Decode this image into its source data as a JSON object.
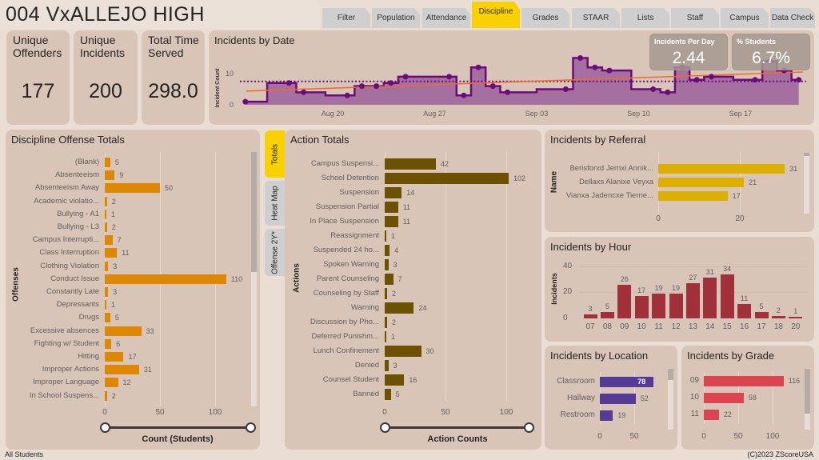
{
  "header": {
    "title": "004 VxALLEJO HIGH"
  },
  "tabs": [
    "Filter",
    "Population",
    "Attendance",
    "Discipline",
    "Grades",
    "STAAR",
    "Lists",
    "Staff",
    "Campus",
    "Data Check"
  ],
  "active_tab": "Discipline",
  "kpis": [
    {
      "label": "Unique Offenders",
      "value": "177"
    },
    {
      "label": "Unique Incidents",
      "value": "200"
    },
    {
      "label": "Total Time Served",
      "value": "298.0"
    }
  ],
  "date_panel": {
    "title": "Incidents by Date",
    "cards": [
      {
        "label": "Incidents Per Day",
        "value": "2.44"
      },
      {
        "label": "% Students",
        "value": "6.7%"
      }
    ]
  },
  "side_tabs": [
    "Totals",
    "Heat Map",
    "Offense 2Y*"
  ],
  "active_side_tab": "Totals",
  "footer": {
    "left": "All Students",
    "right": "(C)2023 ZScoreUSA"
  },
  "colors": {
    "offense": "#dd8800",
    "action": "#6b5100",
    "referral": "#ddb000",
    "hour": "#a0313a",
    "location": "#553a96",
    "grade": "#db4450",
    "date_line": "#6a0d7a",
    "date_fill": "#a56fa0",
    "trend": "#f06a2a",
    "active_tab": "#f9d000"
  },
  "chart_data": [
    {
      "id": "date",
      "type": "line",
      "title": "Incidents by Date",
      "ylabel": "Incident Count",
      "step": true,
      "xticks": [
        "Aug 20",
        "Aug 27",
        "Sep 03",
        "Sep 10",
        "Sep 17"
      ],
      "yticks": [
        0,
        10
      ],
      "x": [
        "Aug 14",
        "Aug 17",
        "Aug 18",
        "Aug 21",
        "Aug 22",
        "Aug 23",
        "Aug 24",
        "Aug 25",
        "Aug 28",
        "Aug 29",
        "Aug 30",
        "Aug 31",
        "Sep 01",
        "Sep 05",
        "Sep 06",
        "Sep 07",
        "Sep 08",
        "Sep 11",
        "Sep 12",
        "Sep 13",
        "Sep 14",
        "Sep 15",
        "Sep 18",
        "Sep 19",
        "Sep 20",
        "Sep 21"
      ],
      "values": [
        1,
        7,
        4,
        3,
        6,
        6,
        7,
        9,
        9,
        3,
        12,
        6,
        4,
        5,
        15,
        12,
        11,
        5,
        4,
        12,
        8,
        9,
        8,
        14,
        11,
        8
      ],
      "average": 7.5,
      "trend": [
        4.4,
        10.5
      ]
    },
    {
      "id": "offense",
      "type": "bar",
      "title": "Discipline Offense Totals",
      "ylabel": "Offenses",
      "xlabel": "Count (Students)",
      "xticks": [
        0,
        50,
        100
      ],
      "categories": [
        "(Blank)",
        "Absenteeism",
        "Absenteeism Away",
        "Academic violatio...",
        "Bullying - A1",
        "Bullying - L3",
        "Campus Interrupti...",
        "Class Interruption",
        "Clothing Violation",
        "Conduct Issue",
        "Constantly Late",
        "Depressants",
        "Drugs",
        "Excessive absences",
        "Fighting w/ Student",
        "Hitting",
        "Improper Actions",
        "Improper Language",
        "In School Suspens..."
      ],
      "values": [
        5,
        9,
        50,
        2,
        1,
        2,
        7,
        11,
        3,
        110,
        3,
        1,
        5,
        33,
        6,
        17,
        31,
        12,
        2
      ]
    },
    {
      "id": "action",
      "type": "bar",
      "title": "Action Totals",
      "ylabel": "Actions",
      "xlabel": "Action Counts",
      "xticks": [
        0,
        50,
        100
      ],
      "categories": [
        "Campus Suspensi...",
        "School Detention",
        "Suspension",
        "Suspension Partial",
        "In Place Suspension",
        "Reassignment",
        "Suspended 24 ho...",
        "Spoken Warning",
        "Parent Counseling",
        "Counseling by Staff",
        "Warning",
        "Discussion by Pho...",
        "Deferred Punishm...",
        "Lunch Confinement",
        "Denied",
        "Counsel Student",
        "Banned"
      ],
      "values": [
        42,
        102,
        14,
        11,
        11,
        1,
        4,
        3,
        7,
        2,
        24,
        2,
        1,
        30,
        3,
        16,
        5
      ]
    },
    {
      "id": "referral",
      "type": "bar",
      "title": "Incidents by Referral",
      "ylabel": "Name",
      "xticks": [
        0,
        20
      ],
      "categories": [
        "Berisforxd Jernxi Annik...",
        "Dellaxs Alanixe Veyxa",
        "Vianxa Jadencxe Tierne..."
      ],
      "values": [
        31,
        21,
        17
      ]
    },
    {
      "id": "hour",
      "type": "bar",
      "title": "Incidents by Hour",
      "ylabel": "Incidents",
      "yticks": [
        0,
        20,
        40
      ],
      "categories": [
        "07",
        "08",
        "09",
        "10",
        "11",
        "12",
        "13",
        "14",
        "15",
        "16",
        "17",
        "18",
        "20"
      ],
      "values": [
        3,
        5,
        26,
        17,
        19,
        19,
        27,
        31,
        34,
        11,
        5,
        2,
        1
      ]
    },
    {
      "id": "location",
      "type": "bar",
      "title": "Incidents by Location",
      "xticks": [
        0,
        50
      ],
      "categories": [
        "Classroom",
        "Hallway",
        "Restroom"
      ],
      "values": [
        78,
        52,
        19
      ]
    },
    {
      "id": "grade",
      "type": "bar",
      "title": "Incidents by Grade",
      "xticks": [
        0,
        50,
        100
      ],
      "categories": [
        "09",
        "10",
        "11"
      ],
      "values": [
        116,
        58,
        22
      ]
    }
  ]
}
